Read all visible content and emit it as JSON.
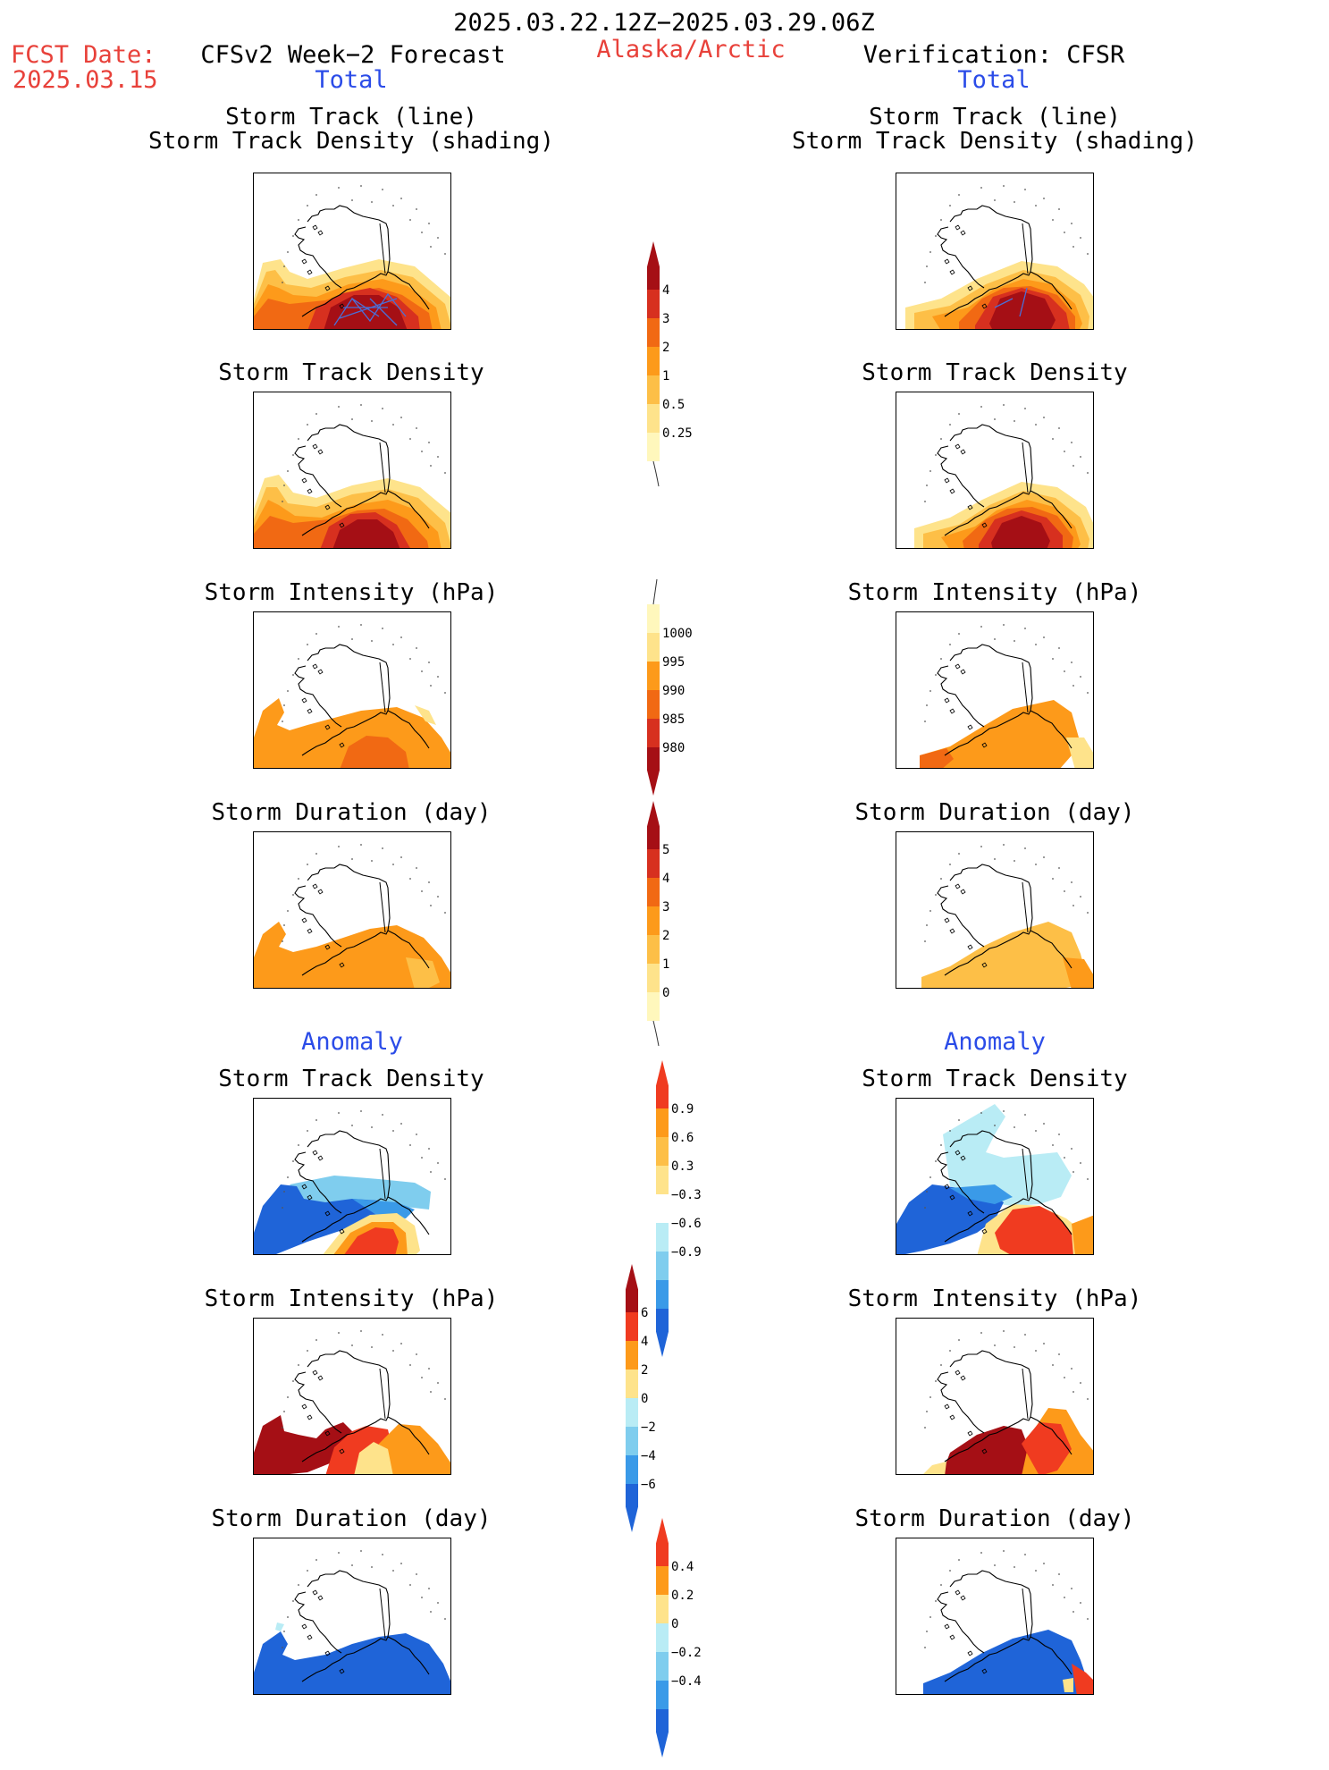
{
  "header": {
    "period": "2025.03.22.12Z−2025.03.29.06Z",
    "fcst_label": "FCST Date:",
    "fcst_date": "2025.03.15",
    "left_title": "CFSv2 Week−2 Forecast",
    "region": "Alaska/Arctic",
    "right_title": "Verification: CFSR",
    "left_section": "Total",
    "right_section": "Total",
    "anomaly_left": "Anomaly",
    "anomaly_right": "Anomaly"
  },
  "panels": {
    "track_line": "Storm Track (line)",
    "track_density_shading": "Storm Track Density (shading)",
    "track_density": "Storm Track Density",
    "intensity": "Storm Intensity (hPa)",
    "duration": "Storm Duration (day)"
  },
  "colorbars": {
    "track_density": {
      "ticks": [
        "4",
        "3",
        "2",
        "1",
        "0.5",
        "0.25"
      ],
      "colors": [
        "#a50f15",
        "#d7301f",
        "#f16913",
        "#fd9a1a",
        "#fdbf47",
        "#fee38b",
        "#fff7bc"
      ]
    },
    "intensity": {
      "ticks": [
        "1000",
        "995",
        "990",
        "985",
        "980"
      ],
      "colors": [
        "#fff7bc",
        "#fee38b",
        "#fd9a1a",
        "#f16913",
        "#d7301f",
        "#a50f15"
      ]
    },
    "duration": {
      "ticks": [
        "5",
        "4",
        "3",
        "2",
        "1",
        "0"
      ],
      "colors": [
        "#a50f15",
        "#d7301f",
        "#f16913",
        "#fd9a1a",
        "#fdbf47",
        "#fee38b",
        "#fff7bc"
      ]
    },
    "anom_density": {
      "ticks": [
        "0.9",
        "0.6",
        "0.3",
        "−0.3",
        "−0.6",
        "−0.9"
      ],
      "colors": [
        "#f03b20",
        "#fd9a1a",
        "#fdbf47",
        "#fee38b",
        "#ffffff",
        "#b9ecf5",
        "#7fcdee",
        "#3a9ae8",
        "#1f64d8"
      ]
    },
    "anom_intensity": {
      "ticks": [
        "6",
        "4",
        "2",
        "0",
        "−2",
        "−4",
        "−6"
      ],
      "colors": [
        "#a50f15",
        "#f03b20",
        "#fd9a1a",
        "#fee38b",
        "#b9ecf5",
        "#7fcdee",
        "#3a9ae8",
        "#1f64d8"
      ]
    },
    "anom_duration": {
      "ticks": [
        "0.4",
        "0.2",
        "0",
        "−0.2",
        "−0.4"
      ],
      "colors": [
        "#f03b20",
        "#fd9a1a",
        "#fee38b",
        "#b9ecf5",
        "#7fcdee",
        "#3a9ae8",
        "#1f64d8"
      ]
    }
  }
}
